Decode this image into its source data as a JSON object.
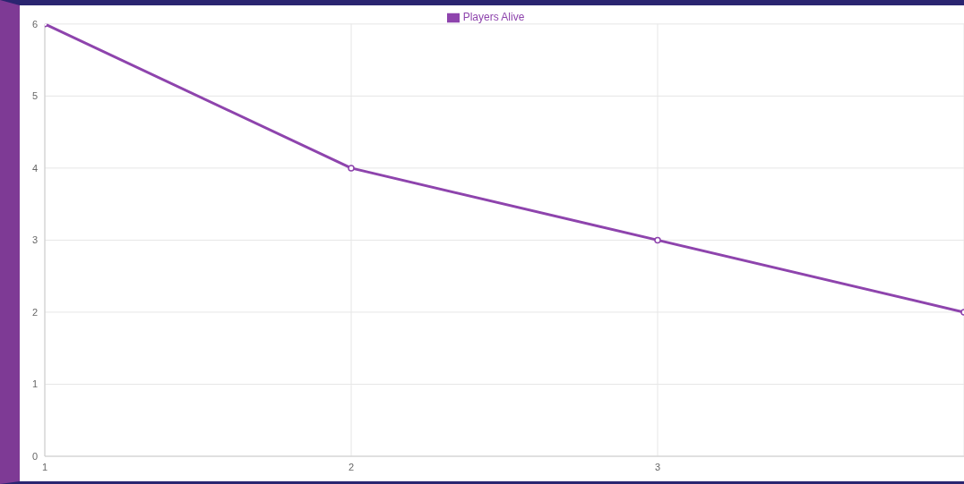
{
  "chart_data": {
    "type": "line",
    "categories": [
      "1",
      "2",
      "3",
      null
    ],
    "series": [
      {
        "name": "Players Alive",
        "color": "#8e44ad",
        "values": [
          6,
          4,
          3,
          2
        ]
      }
    ],
    "ylim": [
      0,
      6
    ],
    "yticks": [
      0,
      1,
      2,
      3,
      4,
      5,
      6
    ],
    "grid": true,
    "legend": "top",
    "marker": "circle"
  }
}
